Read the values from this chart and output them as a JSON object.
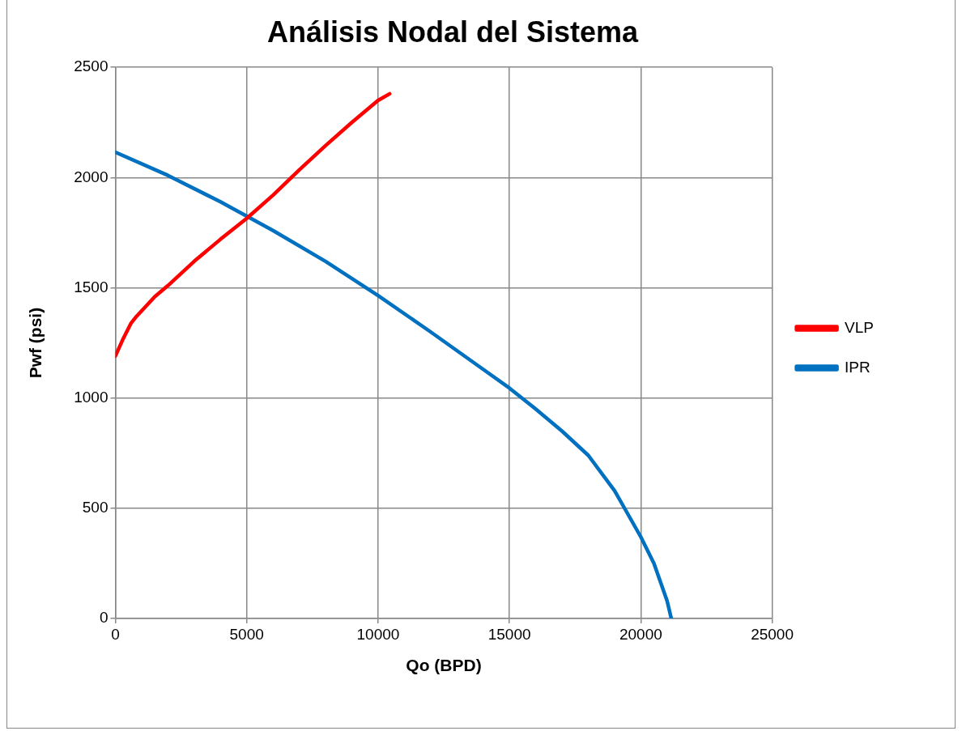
{
  "chart_data": {
    "type": "line",
    "title": "Análisis Nodal del Sistema",
    "xlabel": "Qo (BPD)",
    "ylabel": "Pwf (psi)",
    "xlim": [
      0,
      25000
    ],
    "xticks": [
      0,
      5000,
      10000,
      15000,
      20000,
      25000
    ],
    "ylim": [
      0,
      2500
    ],
    "yticks": [
      0,
      500,
      1000,
      1500,
      2000,
      2500
    ],
    "grid": true,
    "legend": "right",
    "marker": "none",
    "line_style": "solid",
    "series": [
      {
        "name": "VLP",
        "color": "#ff0000",
        "x": [
          0,
          300,
          600,
          800,
          1500,
          2000,
          3000,
          4000,
          5000,
          6000,
          7000,
          8000,
          9000,
          10000,
          10440
        ],
        "values": [
          1190,
          1270,
          1340,
          1370,
          1460,
          1510,
          1620,
          1720,
          1815,
          1920,
          2035,
          2145,
          2250,
          2350,
          2380
        ]
      },
      {
        "name": "IPR",
        "color": "#0070c0",
        "x": [
          0,
          2000,
          4000,
          5000,
          6000,
          8000,
          10000,
          12000,
          14000,
          15000,
          16000,
          17000,
          18000,
          19000,
          20000,
          20500,
          21000,
          21160
        ],
        "values": [
          2115,
          2010,
          1890,
          1825,
          1760,
          1620,
          1465,
          1300,
          1130,
          1045,
          950,
          850,
          740,
          580,
          370,
          250,
          80,
          0
        ]
      }
    ]
  }
}
